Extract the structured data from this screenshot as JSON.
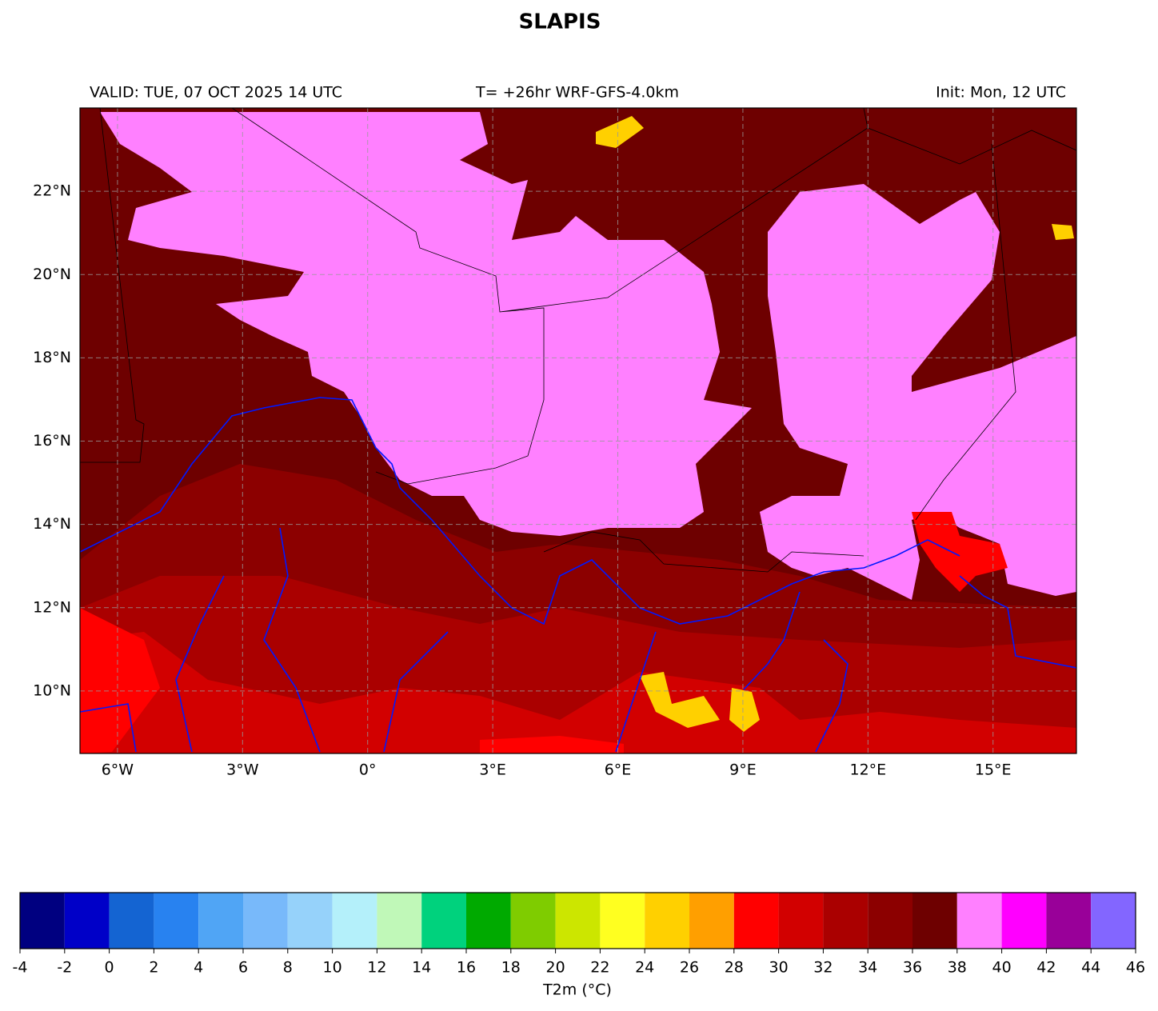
{
  "header": {
    "title": "SLAPIS",
    "valid": "VALID: TUE, 07 OCT 2025 14 UTC",
    "forecast": "T= +26hr WRF-GFS-4.0km",
    "init": "Init: Mon, 12 UTC"
  },
  "map": {
    "xlim": [
      -6.9,
      17
    ],
    "ylim": [
      8.5,
      24
    ],
    "xticks": [
      {
        "value": -6,
        "label": "6°W"
      },
      {
        "value": -3,
        "label": "3°W"
      },
      {
        "value": 0,
        "label": "0°"
      },
      {
        "value": 3,
        "label": "3°E"
      },
      {
        "value": 6,
        "label": "6°E"
      },
      {
        "value": 9,
        "label": "9°E"
      },
      {
        "value": 12,
        "label": "12°E"
      },
      {
        "value": 15,
        "label": "15°E"
      }
    ],
    "yticks": [
      {
        "value": 10,
        "label": "10°N"
      },
      {
        "value": 12,
        "label": "12°N"
      },
      {
        "value": 14,
        "label": "14°N"
      },
      {
        "value": 16,
        "label": "16°N"
      },
      {
        "value": 18,
        "label": "18°N"
      },
      {
        "value": 20,
        "label": "20°N"
      },
      {
        "value": 22,
        "label": "22°N"
      }
    ],
    "grid": true
  },
  "colorbar": {
    "label": "T2m (°C)",
    "bins": [
      -4,
      -2,
      0,
      2,
      4,
      6,
      8,
      10,
      12,
      14,
      16,
      18,
      20,
      22,
      24,
      26,
      28,
      30,
      32,
      34,
      36,
      38,
      40,
      42,
      44,
      46
    ],
    "colors": [
      "#000080",
      "#0000c8",
      "#1464d2",
      "#2882f0",
      "#50a5f5",
      "#78b9fa",
      "#96d2fa",
      "#b4f0fa",
      "#c0f8b8",
      "#00d27d",
      "#00aa00",
      "#7fcc00",
      "#cce600",
      "#ffff20",
      "#ffd000",
      "#ff9f00",
      "#ff0000",
      "#d20000",
      "#aa0000",
      "#8c0000",
      "#6e0000",
      "#ff80ff",
      "#ff00ff",
      "#990099",
      "#8366ff"
    ]
  }
}
